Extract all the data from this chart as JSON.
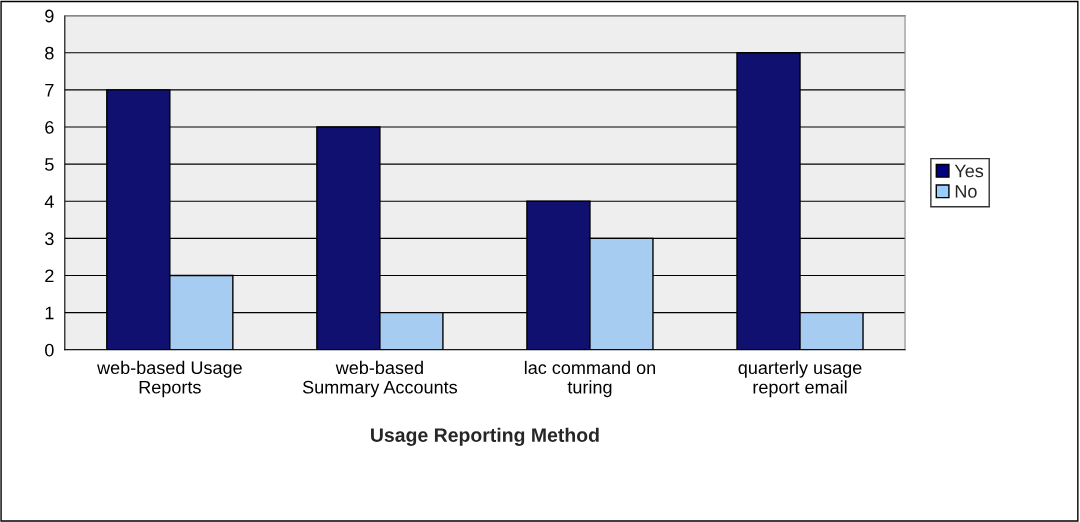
{
  "chart_data": {
    "type": "bar",
    "xlabel": "Usage Reporting Method",
    "categories": [
      "web-based Usage\nReports",
      "web-based\nSummary Accounts",
      "lac command on\nturing",
      "quarterly usage\nreport email"
    ],
    "series": [
      {
        "name": "Yes",
        "color": "#000080",
        "values": [
          7,
          6,
          4,
          8
        ]
      },
      {
        "name": "No",
        "color": "#99ccff",
        "values": [
          2,
          1,
          3,
          1
        ]
      }
    ],
    "ylim": [
      0,
      9
    ],
    "yticks": [
      0,
      1,
      2,
      3,
      4,
      5,
      6,
      7,
      8,
      9
    ],
    "grid": "y",
    "legend": "right"
  }
}
